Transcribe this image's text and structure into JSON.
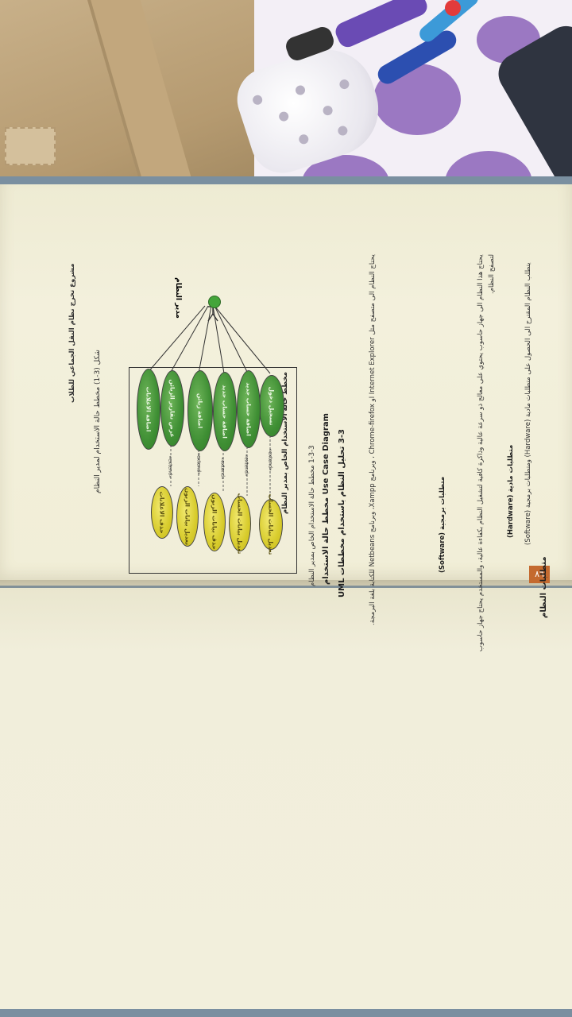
{
  "book": {
    "page_number": "٨٦",
    "heading": "متطلبات النظام",
    "intro": "يتطلب النظام المقترح الى الحصول على متطلبات مادية (Hardware) ومتطلبات برمجية (Software)",
    "hardware_title": "متطلبات مادية (Hardware)",
    "hardware_text": "يحتاج هذا النظام الى جهاز حاسوب يحتوي على معالج ذو سرعة عالية وذاكرة كافية لتشغيل النظام بكفاءة عالية، والمستخدم يحتاج جهاز حاسوب لتصفح النظام.",
    "software_title": "متطلبات برمجية (Software)",
    "software_text": "يحتاج النظام الى متصفح مثل Internet Explorer او Chrome-firefox ، وبرنامج Xampp، وبرنامج Netbeans للكتابة بلغة البرمجة.",
    "section_title": "3-3 تحليل النظام باستخدام مخططات UML",
    "section_en": "Use Case Diagram مخطط حالة الاستخدام",
    "section_sub": "1-3-3 مخطط حالة الاستخدام الخاص بمدير النظام",
    "diagram_title": "مخطط حالة الاستخدام الخاص بمدير النظام",
    "actor": "مدير النظام",
    "use_cases_green": [
      "تسجيل دخول",
      "اضافة حساب جديد",
      "اضافة حساب جديد",
      "اضافة زبائن",
      "عرض تقارير الزبائن",
      "اضافة الاعلانات"
    ],
    "use_cases_yellow": [
      "تعديل بيانات الحساب",
      "تعديل بيانات الحساب",
      "حذف بيانات الزبون",
      "تعديل بيانات الزبون",
      "حذف الاعلانات"
    ],
    "extend_label": "«extend»",
    "caption": "شكل (3-1) مخطط حالة الاستخدام لمدير النظام",
    "footer": "مشروع تخرج نظام النقل الجماعي للطلاب"
  },
  "colors": {
    "use_case_green": "#3f8f34",
    "use_case_yellow": "#d8cc2c",
    "page_number_badge": "#c46a2f",
    "cloth_purple": "#8b63b9"
  }
}
